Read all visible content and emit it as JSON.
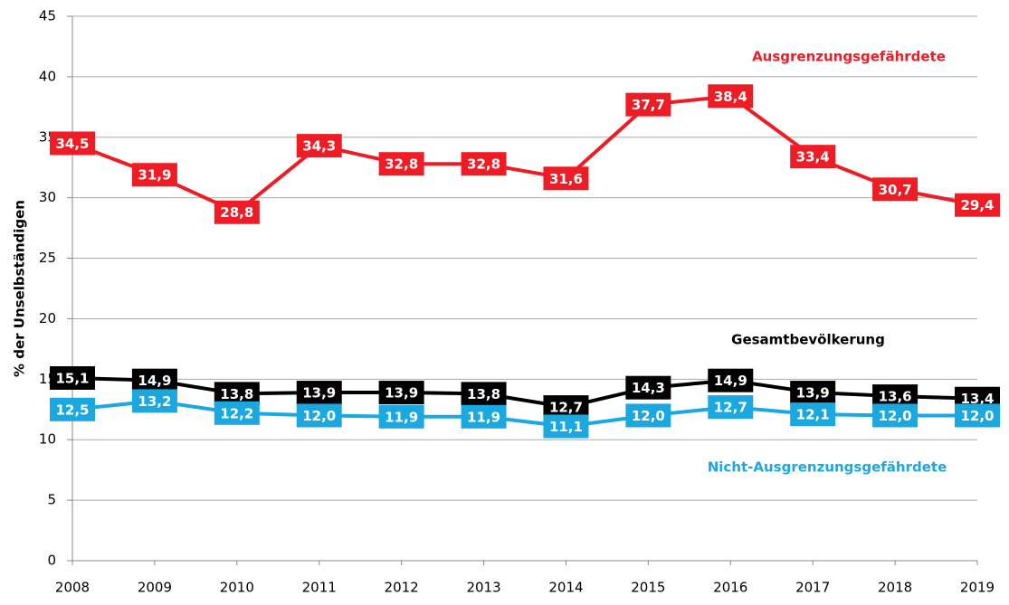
{
  "chart_data": {
    "type": "line",
    "y_label": "% der Unselbständigen",
    "x": [
      2008,
      2009,
      2010,
      2011,
      2012,
      2013,
      2014,
      2015,
      2016,
      2017,
      2018,
      2019
    ],
    "xlim": [
      2008,
      2019
    ],
    "xticks": [
      2008,
      2009,
      2010,
      2011,
      2012,
      2013,
      2014,
      2015,
      2016,
      2017,
      2018,
      2019
    ],
    "ylim": [
      0,
      45
    ],
    "yticks": [
      0,
      5,
      10,
      15,
      20,
      25,
      30,
      35,
      40,
      45
    ],
    "grid": true,
    "series": [
      {
        "name": "Ausgrenzungsgefährdete",
        "color": "#ee1c25",
        "values": [
          34.5,
          31.9,
          28.8,
          34.3,
          32.8,
          32.8,
          31.6,
          37.7,
          38.4,
          33.4,
          30.7,
          29.4
        ],
        "value_labels": [
          "34,5",
          "31,9",
          "28,8",
          "34,3",
          "32,8",
          "32,8",
          "31,6",
          "37,7",
          "38,4",
          "33,4",
          "30,7",
          "29,4"
        ]
      },
      {
        "name": "Gesamtbevölkerung",
        "color": "#000000",
        "values": [
          15.1,
          14.9,
          13.8,
          13.9,
          13.9,
          13.8,
          12.7,
          14.3,
          14.9,
          13.9,
          13.6,
          13.4
        ],
        "value_labels": [
          "15,1",
          "14,9",
          "13,8",
          "13,9",
          "13,9",
          "13,8",
          "12,7",
          "14,3",
          "14,9",
          "13,9",
          "13,6",
          "13,4"
        ]
      },
      {
        "name": "Nicht-Ausgrenzungsgefährdete",
        "color": "#1ba8e0",
        "values": [
          12.5,
          13.2,
          12.2,
          12.0,
          11.9,
          11.9,
          11.1,
          12.0,
          12.7,
          12.1,
          12.0,
          12.0
        ],
        "value_labels": [
          "12,5",
          "13,2",
          "12,2",
          "12,0",
          "11,9",
          "11,9",
          "11,1",
          "12,0",
          "12,7",
          "12,1",
          "12,0",
          "12,0"
        ]
      }
    ]
  }
}
